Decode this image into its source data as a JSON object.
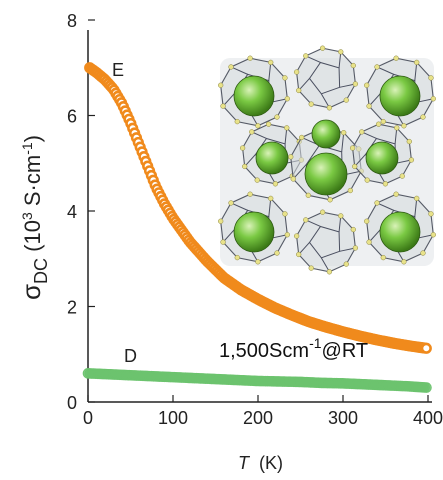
{
  "chart_data": {
    "type": "scatter",
    "xlabel": "T",
    "xunit": "(K)",
    "ylabel_main": "σ",
    "ylabel_sub": "DC",
    "ylabel_unit_open": " (10",
    "ylabel_unit_exp": "3",
    "ylabel_unit_mid": " S·cm",
    "ylabel_unit_exp2": "-1",
    "ylabel_unit_close": ")",
    "xlim": [
      0,
      400
    ],
    "ylim": [
      0,
      8
    ],
    "x_ticks": [
      "0",
      "100",
      "200",
      "300",
      "400"
    ],
    "y_ticks": [
      "0",
      "2",
      "4",
      "6",
      "8"
    ],
    "grid": false,
    "series": [
      {
        "name": "E",
        "color": "#f08a1c",
        "marker": "circle",
        "x": [
          2,
          10,
          20,
          30,
          40,
          50,
          60,
          70,
          80,
          90,
          100,
          120,
          140,
          160,
          180,
          200,
          220,
          240,
          260,
          280,
          300,
          320,
          340,
          360,
          380,
          400
        ],
        "y": [
          7.0,
          6.9,
          6.75,
          6.55,
          6.25,
          5.85,
          5.4,
          4.95,
          4.5,
          4.15,
          3.85,
          3.35,
          2.95,
          2.6,
          2.35,
          2.15,
          1.97,
          1.82,
          1.68,
          1.57,
          1.47,
          1.38,
          1.3,
          1.23,
          1.17,
          1.12
        ]
      },
      {
        "name": "D",
        "color": "#6cc36e",
        "marker": "circle",
        "x": [
          0,
          25,
          50,
          75,
          100,
          125,
          150,
          175,
          200,
          225,
          250,
          275,
          300,
          325,
          350,
          375,
          400
        ],
        "y": [
          0.6,
          0.58,
          0.56,
          0.54,
          0.52,
          0.5,
          0.48,
          0.46,
          0.44,
          0.43,
          0.42,
          0.4,
          0.39,
          0.37,
          0.35,
          0.33,
          0.3
        ]
      }
    ],
    "annotation": {
      "prefix": "1,500Scm",
      "exp": "-1",
      "suffix": "@RT"
    }
  },
  "inset": {
    "ball_color": "#7ac943",
    "cage_color": "#c9ccd1"
  }
}
